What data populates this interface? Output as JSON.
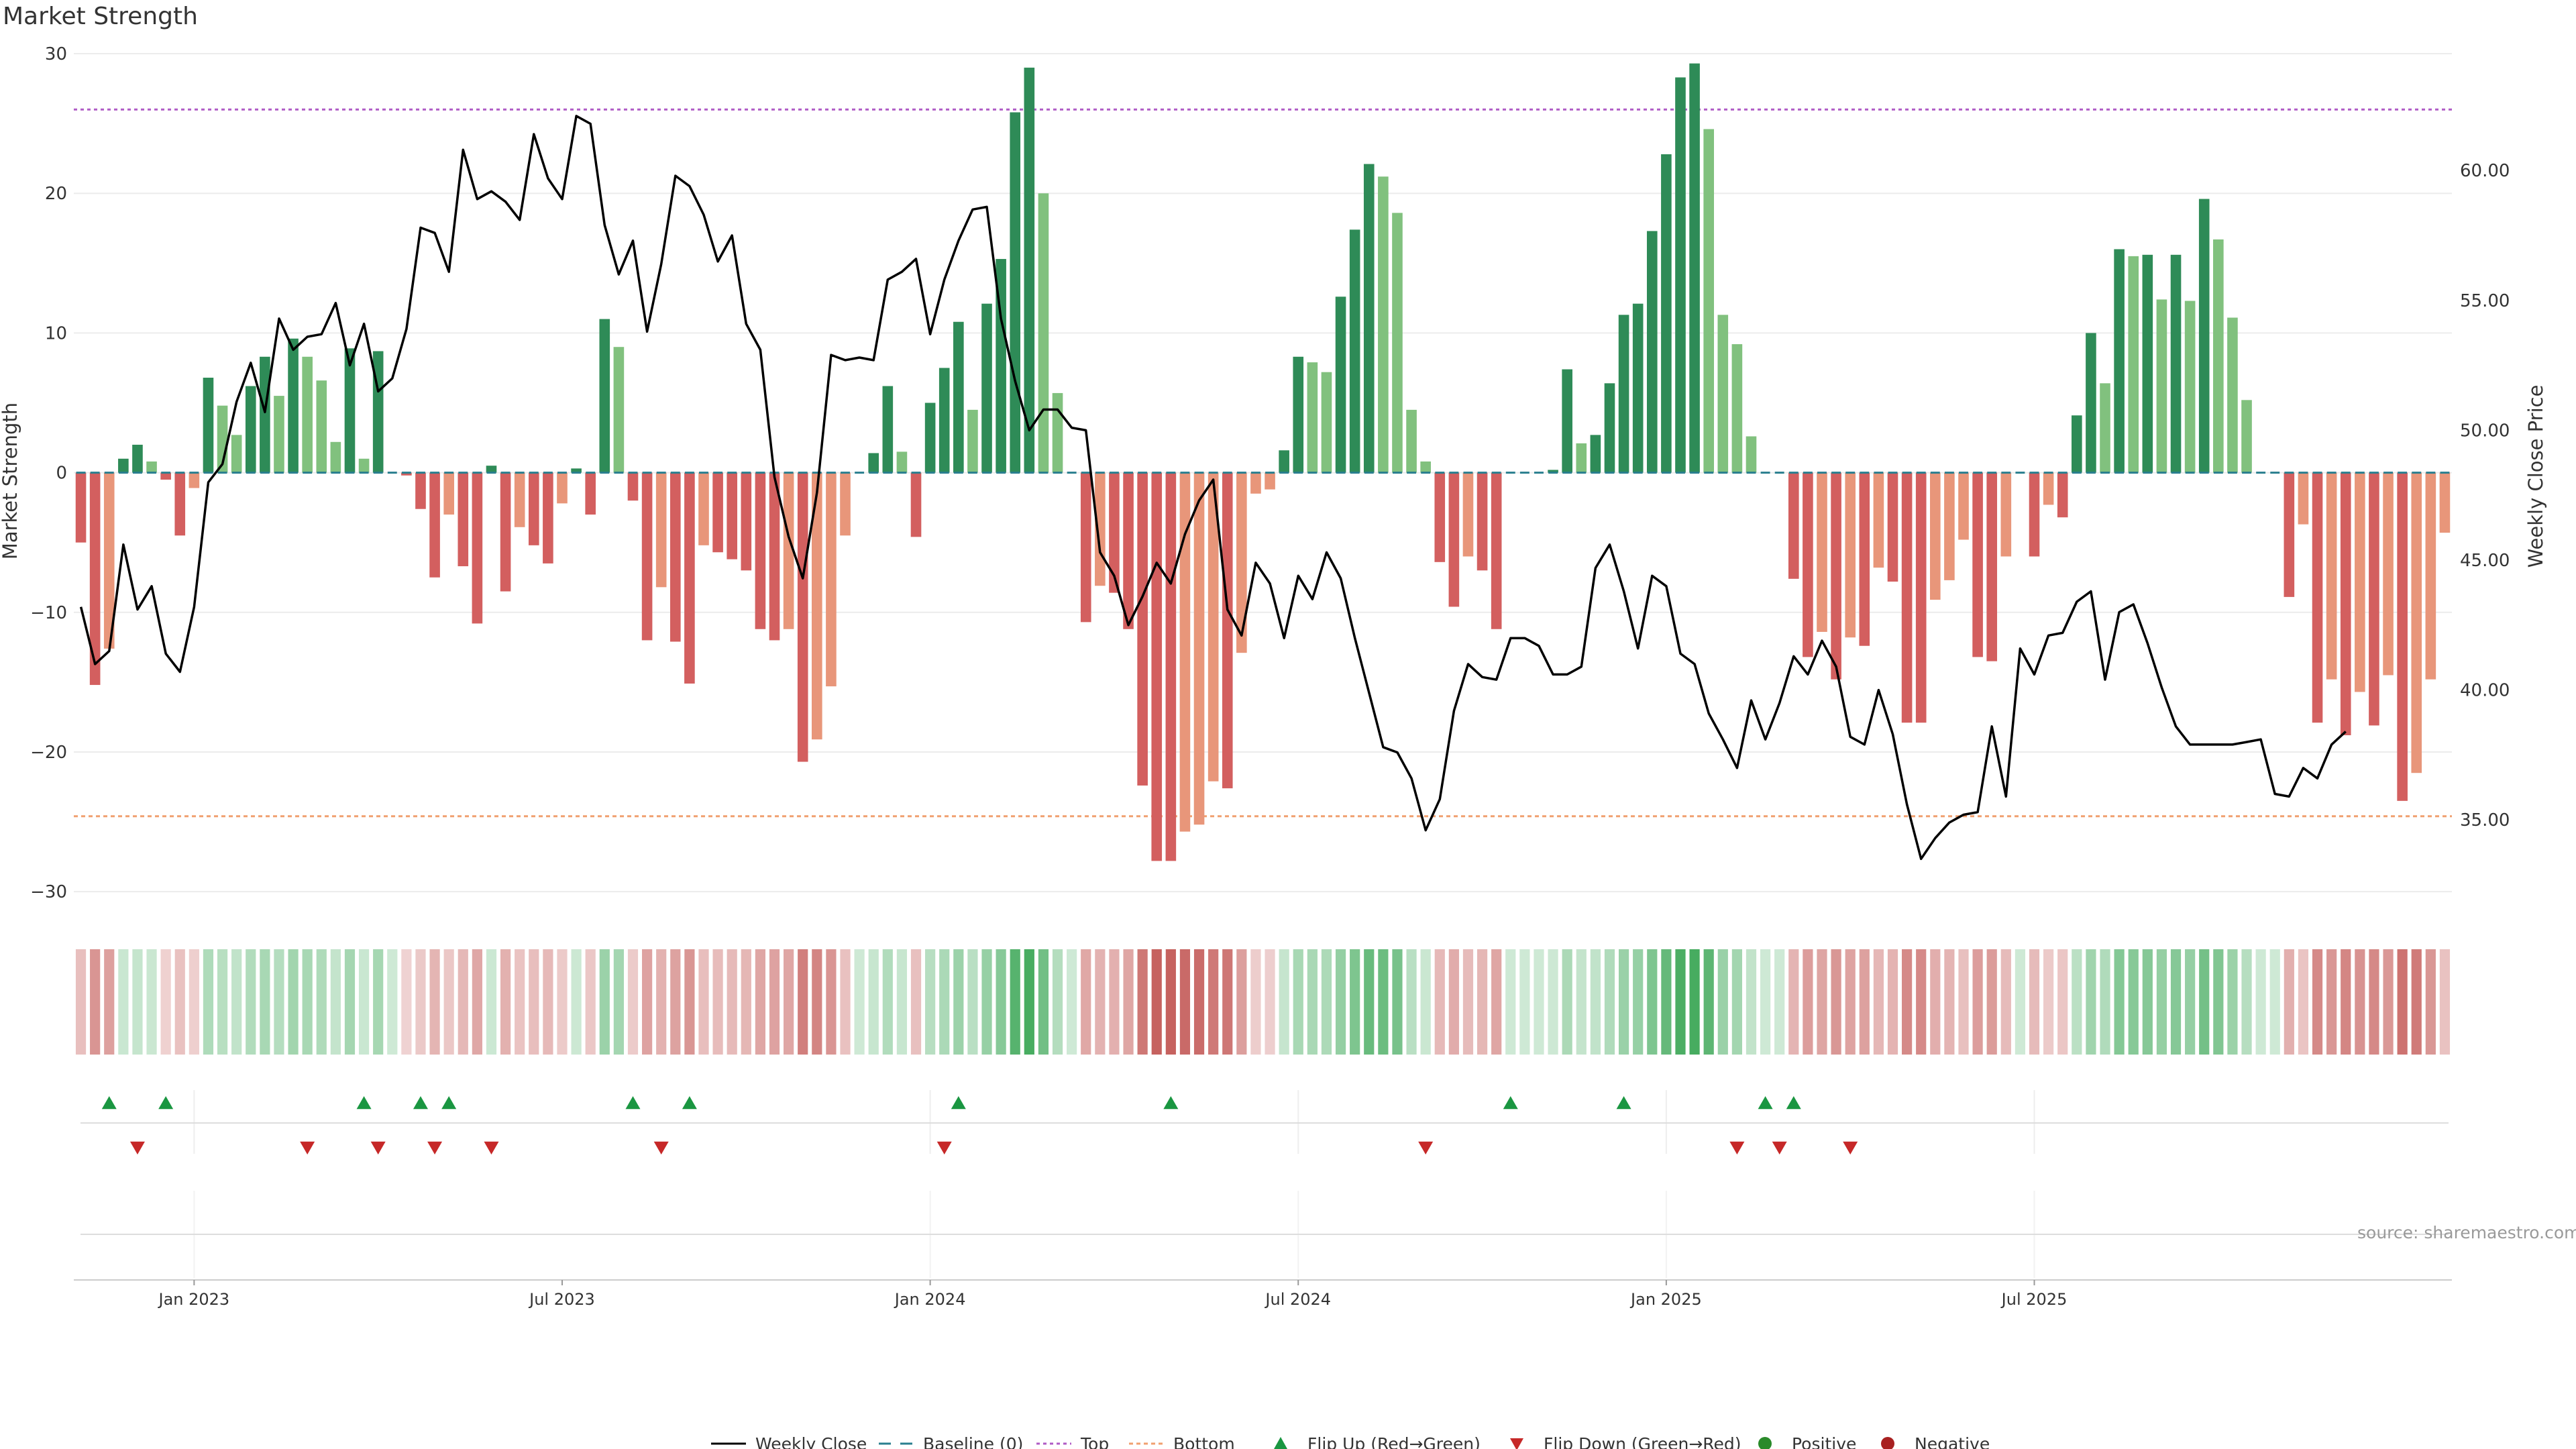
{
  "chart_title": "Market Strength",
  "source": "source: sharemaestro.com",
  "chart_data": {
    "type": "bar",
    "title": "Market Strength",
    "xlabel": "",
    "ylabel": "Market Strength",
    "y2label": "Weekly Close Price",
    "ylim": [
      -31,
      30
    ],
    "y2lim": [
      31.7,
      64.5
    ],
    "yticks": [
      {
        "v": 30,
        "label": "30"
      },
      {
        "v": 20,
        "label": "20"
      },
      {
        "v": 10,
        "label": "10"
      },
      {
        "v": 0,
        "label": "0"
      },
      {
        "v": -10,
        "label": "−10"
      },
      {
        "v": -20,
        "label": "−20"
      },
      {
        "v": -30,
        "label": "−30"
      }
    ],
    "y2ticks": [
      {
        "v": 60,
        "label": "60.00"
      },
      {
        "v": 55,
        "label": "55.00"
      },
      {
        "v": 50,
        "label": "50.00"
      },
      {
        "v": 45,
        "label": "45.00"
      },
      {
        "v": 40,
        "label": "40.00"
      },
      {
        "v": 35,
        "label": "35.00"
      }
    ],
    "xticks": [
      {
        "week": 8.5,
        "label": "Jan 2023"
      },
      {
        "week": 34.5,
        "label": "Jul 2023"
      },
      {
        "week": 60.5,
        "label": "Jan 2024"
      },
      {
        "week": 86.5,
        "label": "Jul 2024"
      },
      {
        "week": 112.5,
        "label": "Jan 2025"
      },
      {
        "week": 138.5,
        "label": "Jul 2025"
      }
    ],
    "top_threshold": 26,
    "bottom_threshold": -24.6,
    "colors": {
      "pos_strong": "#2e8b57",
      "pos_weak": "#81c17e",
      "neg_strong": "#d35f5f",
      "neg_weak": "#e8967a",
      "top_line": "#b05cc6",
      "bottom_line": "#f0a070",
      "baseline": "#2a7f8f",
      "price_line": "#000000",
      "flip_up": "#1a9641",
      "flip_down": "#c62828",
      "positive_dot": "#2a8a2a",
      "negative_dot": "#a82020"
    },
    "series": [
      {
        "name": "Market Strength",
        "values": [
          -5,
          -15.2,
          -12.6,
          1,
          2,
          0.8,
          -0.5,
          -4.5,
          -1.1,
          6.8,
          4.8,
          2.7,
          6.2,
          8.3,
          5.5,
          9.6,
          8.3,
          6.6,
          2.2,
          8.9,
          1,
          8.7,
          0,
          -0.2,
          -2.6,
          -7.5,
          -3,
          -6.7,
          -10.8,
          0.5,
          -8.5,
          -3.9,
          -5.2,
          -6.5,
          -2.2,
          0.3,
          -3,
          11,
          9,
          -2,
          -12,
          -8.2,
          -12.1,
          -15.1,
          -5.2,
          -5.7,
          -6.2,
          -7,
          -11.2,
          -12,
          -11.2,
          -20.7,
          -19.1,
          -15.3,
          -4.5,
          0,
          1.4,
          6.2,
          1.5,
          -4.6,
          5,
          7.5,
          10.8,
          4.5,
          12.1,
          15.3,
          25.8,
          29,
          20,
          5.7,
          0,
          -10.7,
          -8.1,
          -8.6,
          -11.2,
          -22.4,
          -27.8,
          -27.8,
          -25.7,
          -25.2,
          -22.1,
          -22.6,
          -12.9,
          -1.5,
          -1.2,
          1.6,
          8.3,
          7.9,
          7.2,
          12.6,
          17.4,
          22.1,
          21.2,
          18.6,
          4.5,
          0.8,
          -6.4,
          -9.6,
          -6,
          -7,
          -11.2,
          0,
          0,
          0,
          0.2,
          7.4,
          2.1,
          2.7,
          6.4,
          11.3,
          12.1,
          17.3,
          22.8,
          28.3,
          29.3,
          24.6,
          11.3,
          9.2,
          2.6,
          0,
          0,
          -7.6,
          -13.2,
          -11.4,
          -14.8,
          -11.8,
          -12.4,
          -6.8,
          -7.8,
          -17.9,
          -17.9,
          -9.1,
          -7.7,
          -4.8,
          -13.2,
          -13.5,
          -6,
          0,
          -6,
          -2.3,
          -3.2,
          4.1,
          10,
          6.4,
          16,
          15.5,
          15.6,
          12.4,
          15.6,
          12.3,
          19.6,
          16.7,
          11.1,
          5.2,
          0,
          0,
          -8.9,
          -3.7,
          -17.9,
          -14.8,
          -18.8,
          -15.7,
          -18.1,
          -14.5,
          -23.5,
          -21.5,
          -14.8,
          -4.3
        ]
      },
      {
        "name": "Weekly Close",
        "axis": "right",
        "values": [
          43.2,
          41,
          41.5,
          45.6,
          43.1,
          44,
          41.4,
          40.7,
          43.2,
          48,
          48.7,
          51.1,
          52.6,
          50.7,
          54.3,
          53.1,
          53.6,
          53.7,
          54.9,
          52.5,
          54.1,
          51.5,
          52,
          53.9,
          57.8,
          57.6,
          56.1,
          60.8,
          58.9,
          59.2,
          58.8,
          58.1,
          61.4,
          59.7,
          58.9,
          62.1,
          61.8,
          57.9,
          56,
          57.3,
          53.8,
          56.4,
          59.8,
          59.4,
          58.3,
          56.5,
          57.5,
          54.1,
          53.1,
          48.2,
          45.9,
          44.3,
          47.6,
          52.9,
          52.7,
          52.8,
          52.7,
          55.8,
          56.1,
          56.6,
          53.7,
          55.8,
          57.3,
          58.5,
          58.6,
          54.3,
          51.9,
          50,
          50.8,
          50.8,
          50.1,
          50,
          45.3,
          44.4,
          42.5,
          43.6,
          44.9,
          44.1,
          46,
          47.3,
          48.1,
          43.1,
          42.1,
          44.9,
          44.1,
          42,
          44.4,
          43.5,
          45.3,
          44.3,
          42,
          39.9,
          37.8,
          37.6,
          36.6,
          34.6,
          35.8,
          39.2,
          41,
          40.5,
          40.4,
          42,
          42,
          41.7,
          40.6,
          40.6,
          40.9,
          44.7,
          45.6,
          43.8,
          41.6,
          44.4,
          44,
          41.4,
          41,
          39.1,
          38.1,
          37,
          39.6,
          38.1,
          39.5,
          41.3,
          40.6,
          41.9,
          40.9,
          38.2,
          37.9,
          40,
          38.3,
          35.6,
          33.5,
          34.3,
          34.9,
          35.2,
          35.3,
          38.6,
          35.9,
          41.6,
          40.6,
          42.1,
          42.2,
          43.4,
          43.8,
          40.4,
          43,
          43.3,
          41.8,
          40.1,
          38.6,
          37.9,
          37.9,
          37.9,
          37.9,
          38,
          38.1,
          36,
          35.9,
          37,
          36.6,
          37.9,
          38.4
        ]
      }
    ],
    "flip_up_weeks": [
      2,
      6,
      20,
      24,
      26,
      39,
      43,
      62,
      77,
      101,
      109,
      119,
      121
    ],
    "flip_down_weeks": [
      4,
      16,
      21,
      25,
      29,
      41,
      61,
      95,
      117,
      120,
      125
    ],
    "legend": [
      "Weekly Close",
      "Baseline (0)",
      "Top",
      "Bottom",
      "Flip Up (Red→Green)",
      "Flip Down (Green→Red)",
      "Positive",
      "Negative"
    ]
  }
}
